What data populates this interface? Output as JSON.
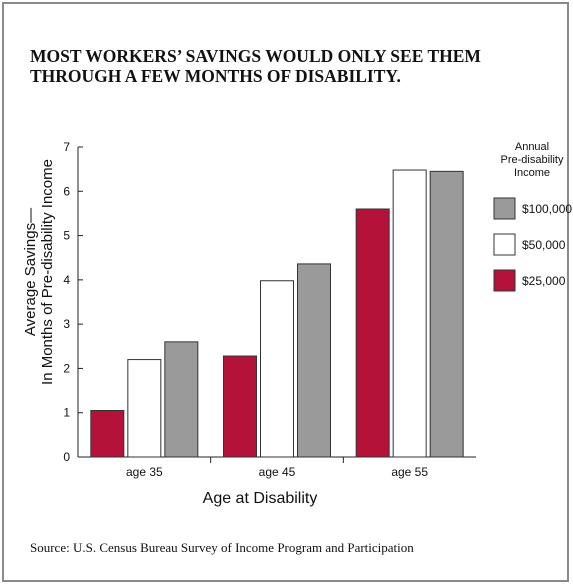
{
  "chart_data": {
    "type": "bar",
    "title": "MOST WORKERS’ SAVINGS WOULD ONLY SEE THEM THROUGH A FEW MONTHS OF DISABILITY.",
    "xlabel": "Age at Disability",
    "ylabel_line1": "Average Savings—",
    "ylabel_line2": "In Months of Pre-disability Income",
    "categories": [
      "age 35",
      "age 45",
      "age 55"
    ],
    "ylim": [
      0,
      7
    ],
    "yticks": [
      "0",
      "1",
      "2",
      "3",
      "4",
      "5",
      "6",
      "7"
    ],
    "grid": false,
    "legend_position": "right",
    "legend_title": [
      "Annual",
      "Pre-disability",
      "Income"
    ],
    "series": [
      {
        "name": "$25,000",
        "color": "#b5123a",
        "values": [
          1.05,
          2.28,
          5.6
        ]
      },
      {
        "name": "$50,000",
        "color": "#ffffff",
        "values": [
          2.2,
          3.98,
          6.48
        ]
      },
      {
        "name": "$100,000",
        "color": "#9a9a9a",
        "values": [
          2.6,
          4.36,
          6.45
        ]
      }
    ],
    "legend_order": [
      2,
      1,
      0
    ]
  },
  "source": "Source:  U.S. Census Bureau Survey of Income Program and Participation"
}
